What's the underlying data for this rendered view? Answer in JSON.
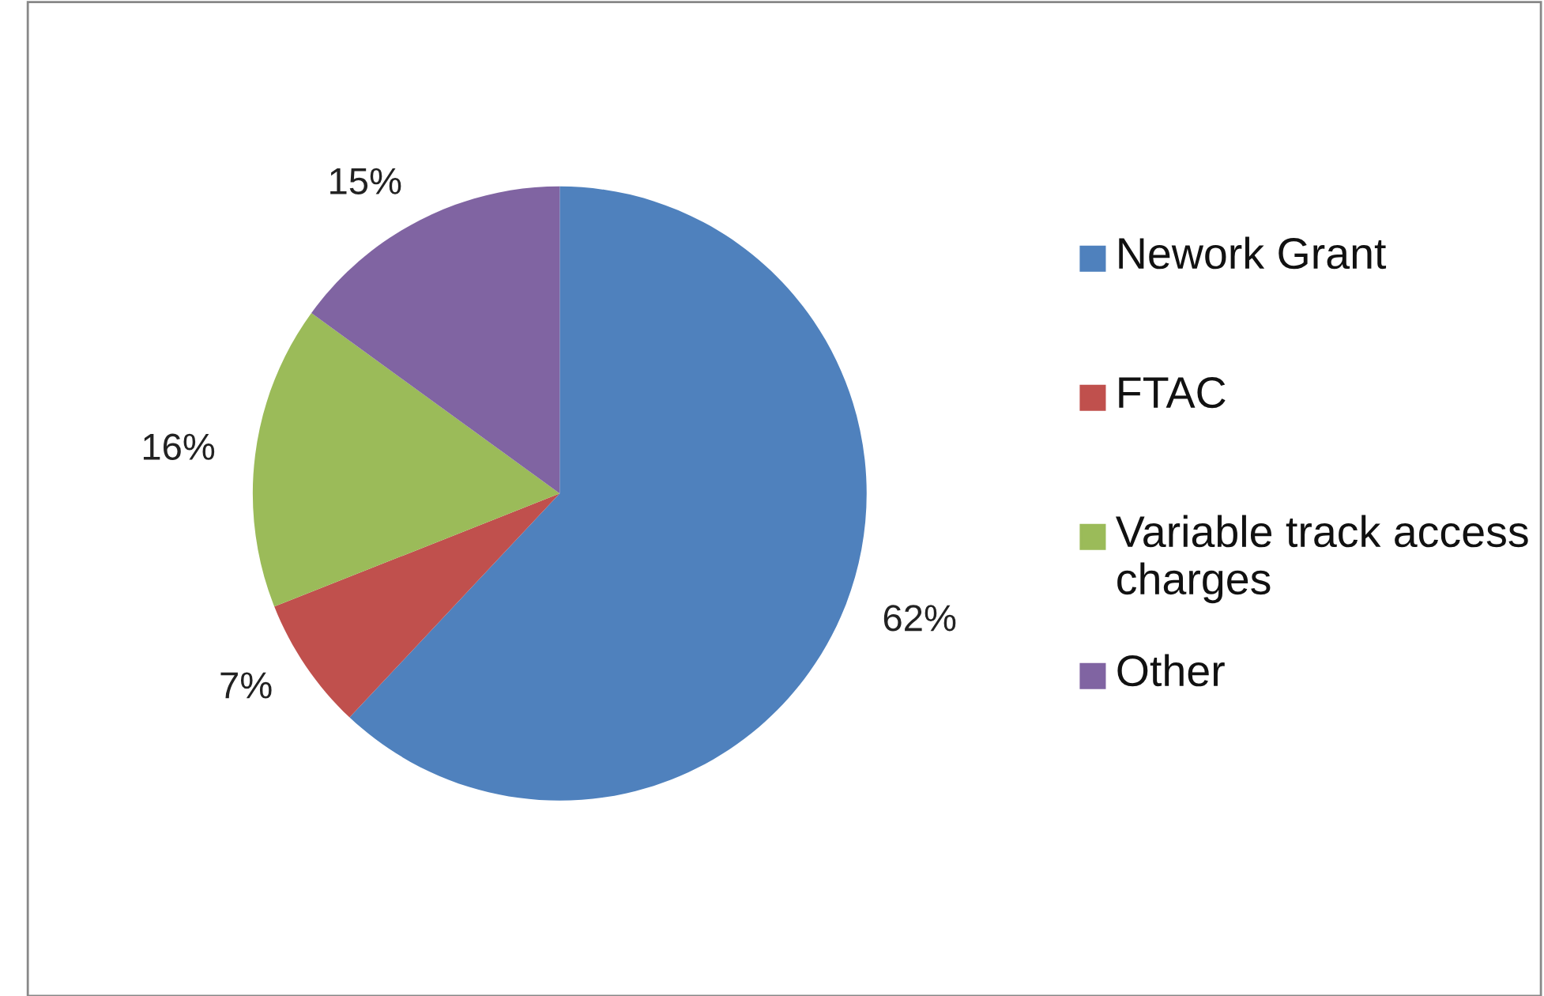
{
  "chart_data": {
    "type": "pie",
    "categories": [
      "Nework Grant",
      "FTAC",
      "Variable track access charges",
      "Other"
    ],
    "values": [
      62,
      7,
      16,
      15
    ],
    "colors": [
      "#4f81bd",
      "#c0504d",
      "#9bbb59",
      "#8064a2"
    ],
    "value_labels": [
      "62%",
      "7%",
      "16%",
      "15%"
    ],
    "legend": "right"
  }
}
